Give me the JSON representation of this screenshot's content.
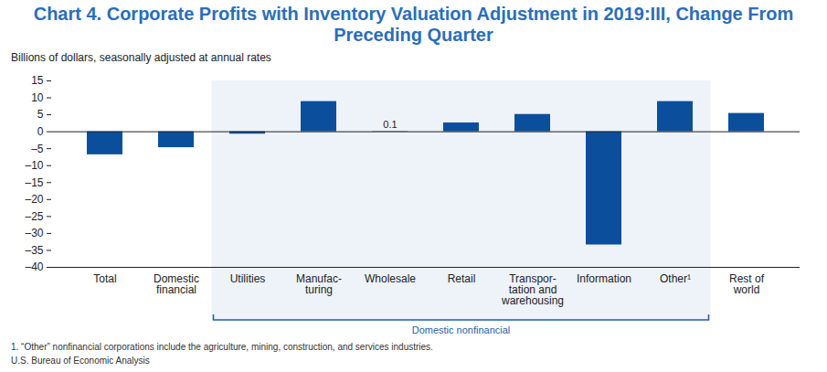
{
  "chart_data": {
    "type": "bar",
    "title": "Chart 4. Corporate Profits with Inventory Valuation Adjustment in 2019:III, Change From Preceding Quarter",
    "subtitle": "Billions of dollars, seasonally adjusted at annual rates",
    "categories": [
      "Total",
      "Domestic\nfinancial",
      "Utilities",
      "Manufac-\nturing",
      "Wholesale",
      "Retail",
      "Transpor-\ntation and\nwarehousing",
      "Information",
      "Other¹",
      "Rest of\nworld"
    ],
    "values": [
      -6.8,
      -4.7,
      -0.7,
      8.9,
      0.1,
      2.6,
      5.1,
      -33.4,
      8.9,
      5.4
    ],
    "color": "#0b4f9c",
    "ylim": [
      -40,
      15
    ],
    "yticks": [
      15,
      10,
      5,
      0,
      {
        "value": -5,
        "label": "–5"
      },
      {
        "value": -10,
        "label": "–10"
      },
      {
        "value": -15,
        "label": "–15"
      },
      {
        "value": -20,
        "label": "–20"
      },
      {
        "value": -25,
        "label": "–25"
      },
      {
        "value": -30,
        "label": "–30"
      },
      {
        "value": -35,
        "label": "–35"
      },
      {
        "value": -40,
        "label": "–40"
      }
    ],
    "grid": false,
    "annotations": [
      {
        "category": "Wholesale",
        "text": "0.1"
      }
    ],
    "group": {
      "label": "Domestic nonfinancial",
      "from": "Utilities",
      "to": "Other¹"
    },
    "footnote": "1. “Other” nonfinancial corporations include the agriculture, mining, construction, and services industries.",
    "source": "U.S. Bureau of Economic Analysis"
  }
}
